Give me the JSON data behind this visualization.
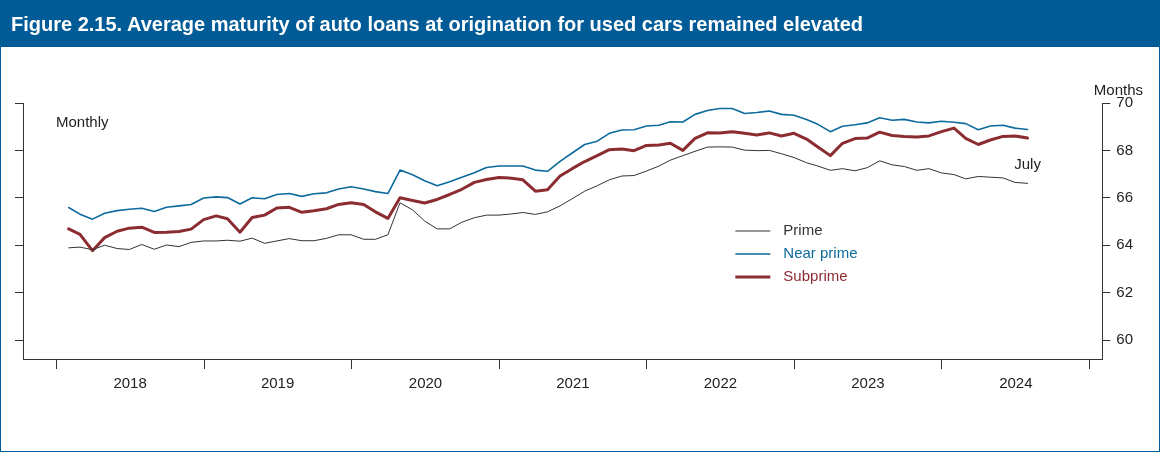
{
  "chart_data": {
    "type": "line",
    "title": "Figure 2.15. Average maturity of auto loans at origination for used cars remained elevated",
    "ylabel": "Months",
    "annotations": [
      "Monthly",
      "July"
    ],
    "x": [
      "2018-01-31",
      "2018-02-28",
      "2018-03-31",
      "2018-04-30",
      "2018-05-31",
      "2018-06-30",
      "2018-07-31",
      "2018-08-31",
      "2018-09-30",
      "2018-10-31",
      "2018-11-30",
      "2018-12-31",
      "2019-01-31",
      "2019-02-28",
      "2019-03-31",
      "2019-04-30",
      "2019-05-31",
      "2019-06-30",
      "2019-07-31",
      "2019-08-31",
      "2019-09-30",
      "2019-10-31",
      "2019-11-30",
      "2019-12-31",
      "2020-01-31",
      "2020-02-29",
      "2020-03-31",
      "2020-04-30",
      "2020-05-31",
      "2020-06-30",
      "2020-07-31",
      "2020-08-31",
      "2020-09-30",
      "2020-10-31",
      "2020-11-30",
      "2020-12-31",
      "2021-01-31",
      "2021-02-28",
      "2021-03-31",
      "2021-04-30",
      "2021-05-31",
      "2021-06-30",
      "2021-07-31",
      "2021-08-31",
      "2021-09-30",
      "2021-10-31",
      "2021-11-30",
      "2021-12-31",
      "2022-01-31",
      "2022-02-28",
      "2022-03-31",
      "2022-04-30",
      "2022-05-31",
      "2022-06-30",
      "2022-07-31",
      "2022-08-31",
      "2022-09-30",
      "2022-10-31",
      "2022-11-30",
      "2022-12-31",
      "2023-01-31",
      "2023-02-28",
      "2023-03-31",
      "2023-04-30",
      "2023-05-31",
      "2023-06-30",
      "2023-07-31",
      "2023-08-31",
      "2023-09-30",
      "2023-10-31",
      "2023-11-30",
      "2023-12-31",
      "2024-01-31",
      "2024-02-29",
      "2024-03-31",
      "2024-04-30",
      "2024-05-31",
      "2024-06-30",
      "2024-07-31"
    ],
    "series": [
      {
        "name": "Prime",
        "color": "#333333",
        "values": [
          63.89,
          63.92,
          63.81,
          64.0,
          63.86,
          63.82,
          64.03,
          63.83,
          64.01,
          63.94,
          64.12,
          64.18,
          64.18,
          64.21,
          64.17,
          64.3,
          64.08,
          64.18,
          64.28,
          64.19,
          64.19,
          64.29,
          64.44,
          64.44,
          64.25,
          64.25,
          64.44,
          65.79,
          65.49,
          65.02,
          64.69,
          64.69,
          64.97,
          65.16,
          65.27,
          65.27,
          65.32,
          65.38,
          65.3,
          65.41,
          65.66,
          65.96,
          66.28,
          66.51,
          66.76,
          66.92,
          66.94,
          67.13,
          67.34,
          67.59,
          67.78,
          67.96,
          68.14,
          68.15,
          68.14,
          68.01,
          67.99,
          68.0,
          67.86,
          67.7,
          67.48,
          67.34,
          67.16,
          67.23,
          67.14,
          67.27,
          67.56,
          67.39,
          67.32,
          67.16,
          67.23,
          67.05,
          66.98,
          66.8,
          66.9,
          66.87,
          66.84,
          66.65,
          66.61
        ]
      },
      {
        "name": "Near prime",
        "color": "#0d6a9c",
        "values": [
          65.59,
          65.31,
          65.1,
          65.35,
          65.46,
          65.52,
          65.56,
          65.42,
          65.6,
          65.66,
          65.72,
          65.99,
          66.04,
          66.01,
          65.74,
          66.0,
          65.96,
          66.14,
          66.18,
          66.06,
          66.17,
          66.21,
          66.37,
          66.47,
          66.37,
          66.26,
          66.18,
          67.17,
          66.97,
          66.72,
          66.51,
          66.68,
          66.87,
          67.06,
          67.28,
          67.34,
          67.34,
          67.34,
          67.17,
          67.12,
          67.54,
          67.89,
          68.25,
          68.39,
          68.72,
          68.86,
          68.87,
          69.03,
          69.06,
          69.21,
          69.2,
          69.52,
          69.68,
          69.77,
          69.77,
          69.56,
          69.6,
          69.66,
          69.52,
          69.48,
          69.3,
          69.1,
          68.79,
          69.02,
          69.08,
          69.16,
          69.38,
          69.27,
          69.31,
          69.2,
          69.16,
          69.23,
          69.19,
          69.13,
          68.87,
          69.03,
          69.06,
          68.94,
          68.88
        ]
      },
      {
        "name": "Subprime",
        "color": "#8b2c31",
        "values": [
          64.69,
          64.46,
          63.77,
          64.32,
          64.59,
          64.72,
          64.76,
          64.54,
          64.55,
          64.58,
          64.68,
          65.08,
          65.24,
          65.12,
          64.55,
          65.17,
          65.27,
          65.57,
          65.6,
          65.39,
          65.45,
          65.54,
          65.72,
          65.79,
          65.72,
          65.41,
          65.13,
          66.0,
          65.89,
          65.78,
          65.93,
          66.14,
          66.36,
          66.65,
          66.77,
          66.86,
          66.83,
          66.76,
          66.28,
          66.34,
          66.92,
          67.23,
          67.53,
          67.78,
          68.03,
          68.06,
          67.99,
          68.21,
          68.23,
          68.3,
          68.0,
          68.51,
          68.74,
          68.73,
          68.79,
          68.72,
          68.65,
          68.74,
          68.61,
          68.72,
          68.48,
          68.14,
          67.78,
          68.3,
          68.5,
          68.52,
          68.77,
          68.63,
          68.59,
          68.57,
          68.61,
          68.79,
          68.94,
          68.51,
          68.25,
          68.44,
          68.59,
          68.61,
          68.52
        ]
      }
    ],
    "xlim": [
      "2017-10-10",
      "2025-02-01"
    ],
    "xticks": [
      {
        "value": "2018-01-01",
        "label": null
      },
      {
        "value": "2018-07-02",
        "label": "2018"
      },
      {
        "value": "2019-01-01",
        "label": null
      },
      {
        "value": "2019-07-02",
        "label": "2019"
      },
      {
        "value": "2020-01-01",
        "label": null
      },
      {
        "value": "2020-07-02",
        "label": "2020"
      },
      {
        "value": "2021-01-01",
        "label": null
      },
      {
        "value": "2021-07-02",
        "label": "2021"
      },
      {
        "value": "2022-01-01",
        "label": null
      },
      {
        "value": "2022-07-02",
        "label": "2022"
      },
      {
        "value": "2023-01-01",
        "label": null
      },
      {
        "value": "2023-07-02",
        "label": "2023"
      },
      {
        "value": "2024-01-01",
        "label": null
      },
      {
        "value": "2024-07-02",
        "label": "2024"
      },
      {
        "value": "2025-01-01",
        "label": null
      }
    ],
    "ylim": [
      59.2,
      70
    ],
    "yticks": [
      60,
      62,
      64,
      66,
      68,
      70
    ],
    "grid": false,
    "legend": "center"
  }
}
